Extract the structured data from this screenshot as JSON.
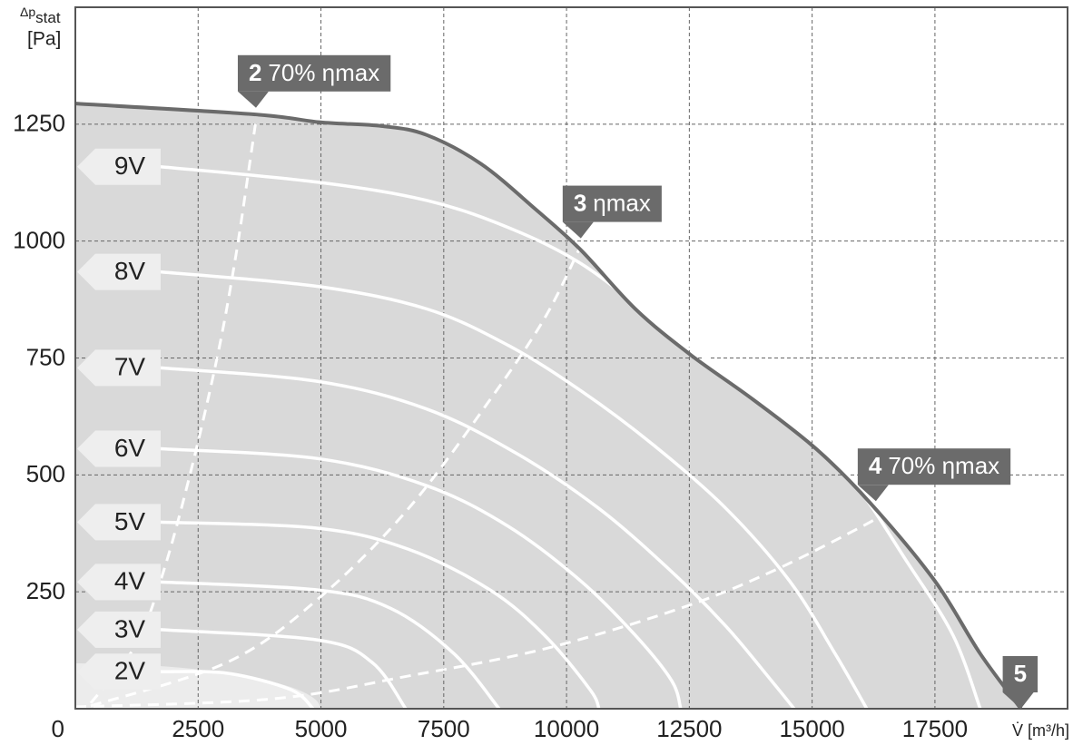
{
  "chart_data": {
    "type": "fan-curves",
    "y_label": {
      "symbol": "Δp",
      "subscript": "stat",
      "unit": "[Pa]"
    },
    "x_label": "V̇ [m³/h]",
    "xlim": [
      0,
      20200
    ],
    "ylim": [
      0,
      1500
    ],
    "xticks": [
      0,
      2500,
      5000,
      7500,
      10000,
      12500,
      15000,
      17500
    ],
    "yticks": [
      250,
      500,
      750,
      1000,
      1250
    ],
    "grid": true,
    "envelope": {
      "color": "#6b6b6b",
      "fill": "#d9d9d9",
      "x": [
        0,
        3640,
        4990,
        6230,
        7150,
        8260,
        9370,
        10290,
        11400,
        12510,
        13800,
        15100,
        16200,
        17500,
        18420,
        19250
      ],
      "values": [
        1294,
        1271,
        1254,
        1246,
        1227,
        1165,
        1068,
        981,
        855,
        758,
        661,
        554,
        438,
        273,
        118,
        0
      ]
    },
    "series": [
      {
        "name": "9V",
        "color": "#ffffff",
        "x": [
          1737,
          4933,
          7150,
          8813,
          10291,
          11770,
          13248,
          14727,
          15836,
          16945,
          17869,
          18423
        ],
        "values": [
          1159,
          1126,
          1087,
          1029,
          952,
          835,
          719,
          603,
          486,
          312,
          157,
          0
        ]
      },
      {
        "name": "8V",
        "color": "#ffffff",
        "x": [
          1737,
          4933,
          7150,
          8813,
          10291,
          11770,
          13248,
          14542,
          15466,
          16113
        ],
        "values": [
          934,
          903,
          855,
          777,
          680,
          564,
          428,
          273,
          118,
          0
        ]
      },
      {
        "name": "7V",
        "color": "#ffffff",
        "x": [
          1737,
          4933,
          7150,
          8998,
          10661,
          12140,
          13248,
          14172,
          14634
        ],
        "values": [
          729,
          700,
          641,
          545,
          428,
          293,
          176,
          60,
          0
        ]
      },
      {
        "name": "6V",
        "color": "#ffffff",
        "x": [
          1737,
          4933,
          7150,
          8813,
          10291,
          11400,
          12140,
          12325
        ],
        "values": [
          556,
          535,
          477,
          390,
          273,
          157,
          60,
          0
        ]
      },
      {
        "name": "5V",
        "color": "#ffffff",
        "x": [
          1737,
          4933,
          6781,
          8444,
          9553,
          10477,
          10661
        ],
        "values": [
          399,
          386,
          341,
          254,
          157,
          41,
          0
        ]
      },
      {
        "name": "4V",
        "color": "#ffffff",
        "x": [
          1737,
          4933,
          6411,
          7705,
          8629
        ],
        "values": [
          271,
          254,
          215,
          118,
          0
        ]
      },
      {
        "name": "3V",
        "color": "#ffffff",
        "x": [
          1737,
          4933,
          6042,
          6726
        ],
        "values": [
          169,
          147,
          99,
          0
        ]
      },
      {
        "name": "2V",
        "color": "#ffffff",
        "x": [
          1737,
          3086,
          4380,
          4842
        ],
        "values": [
          79,
          76,
          41,
          0
        ]
      }
    ],
    "efficiency_lines": [
      {
        "x": [
          314,
          1238,
          1793,
          2347,
          2901,
          3271,
          3548,
          3714
        ],
        "values": [
          12,
          138,
          293,
          506,
          758,
          971,
          1165,
          1285
        ]
      },
      {
        "x": [
          314,
          3086,
          4933,
          6781,
          8444,
          9553,
          10291
        ],
        "values": [
          6,
          99,
          234,
          428,
          661,
          835,
          990
        ]
      },
      {
        "x": [
          0,
          4010,
          6781,
          9553,
          12325,
          14172,
          16020,
          16482
        ],
        "values": [
          4,
          21,
          70,
          128,
          215,
          293,
          390,
          419
        ]
      }
    ],
    "annotations": [
      {
        "number": "2",
        "text": "70% ηmax",
        "x": 3677,
        "y": 1285
      },
      {
        "number": "3",
        "text": "ηmax",
        "x": 10291,
        "y": 1006
      },
      {
        "number": "4",
        "text": "70% ηmax",
        "x": 16298,
        "y": 444
      },
      {
        "number": "5",
        "x": 19250,
        "y": 0
      }
    ]
  }
}
